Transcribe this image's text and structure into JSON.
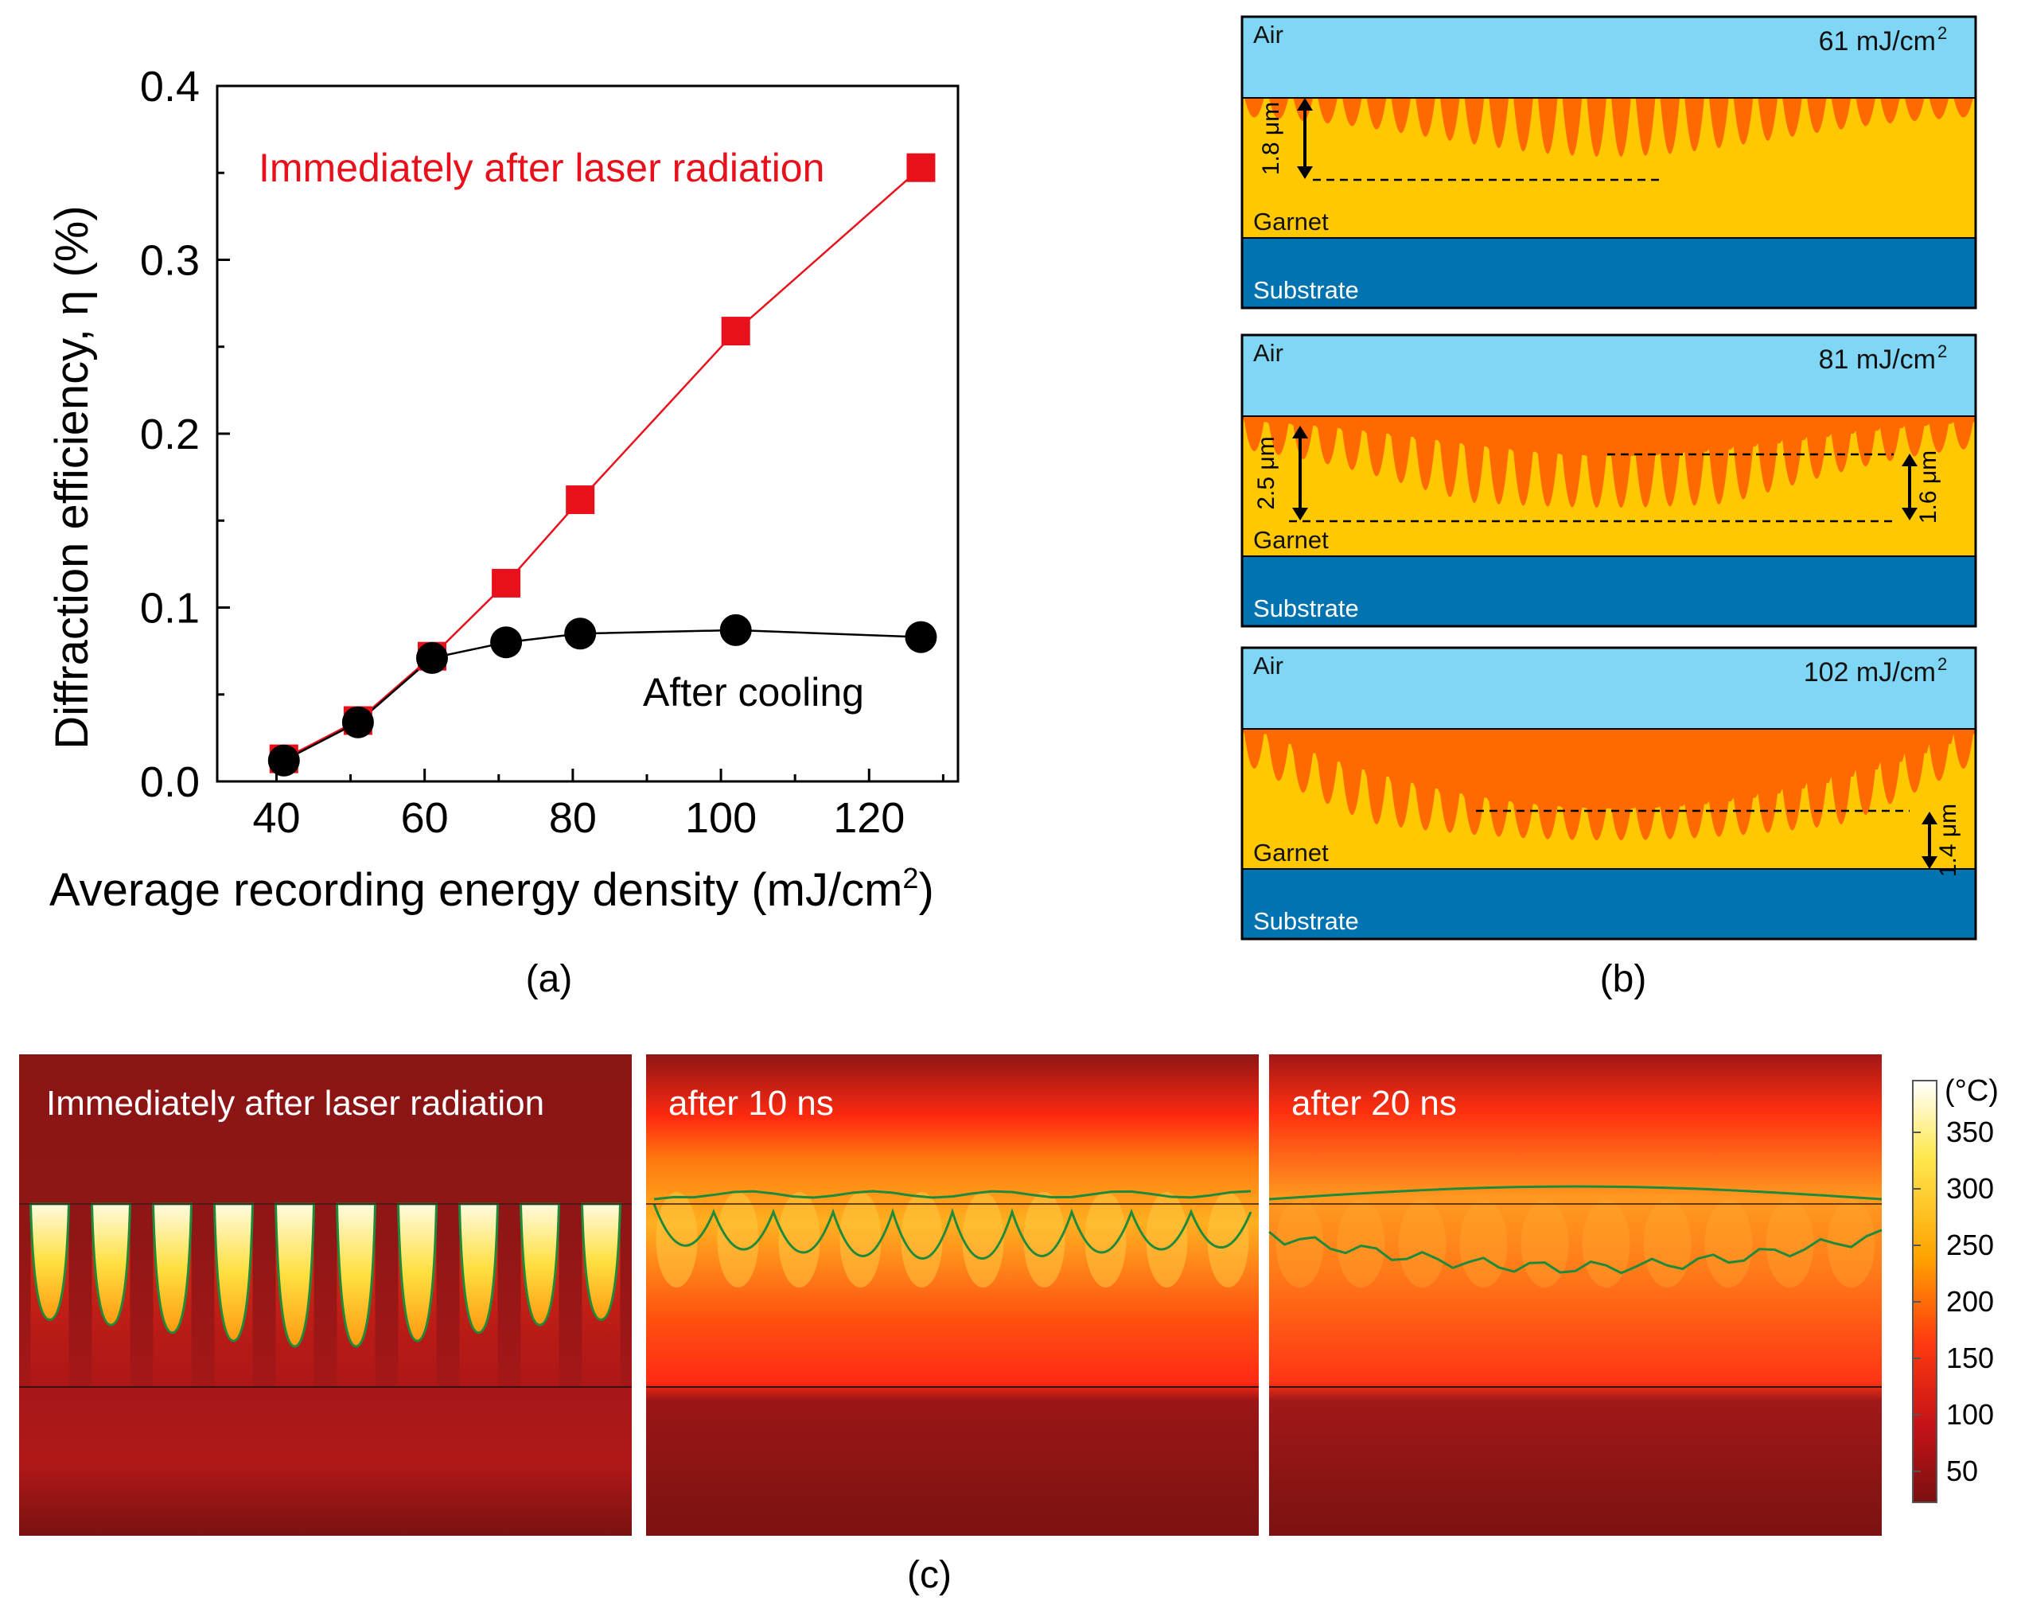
{
  "panel_a": {
    "caption": "(a)",
    "chart_data": {
      "type": "line",
      "title": "",
      "xlabel": "Average recording energy density (mJ/cm",
      "xlabel_sup": "2",
      "xlabel_end": ")",
      "ylabel": "Diffraction efficiency, η (%)",
      "xlim": [
        32,
        132
      ],
      "ylim": [
        0.0,
        0.4
      ],
      "xticks": [
        40,
        60,
        80,
        100,
        120
      ],
      "xtick_labels": [
        "40",
        "60",
        "80",
        "100",
        "120"
      ],
      "yticks": [
        0.0,
        0.1,
        0.2,
        0.3,
        0.4
      ],
      "ytick_labels": [
        "0.0",
        "0.1",
        "0.2",
        "0.3",
        "0.4"
      ],
      "series": [
        {
          "name": "Immediately after laser radiation",
          "color": "#e8101a",
          "marker": "square",
          "x": [
            41,
            51,
            61,
            71,
            81,
            102,
            127
          ],
          "values": [
            0.013,
            0.035,
            0.072,
            0.114,
            0.162,
            0.259,
            0.353
          ]
        },
        {
          "name": "After  cooling",
          "color": "#000000",
          "marker": "circle",
          "x": [
            41,
            51,
            61,
            71,
            81,
            102,
            127
          ],
          "values": [
            0.012,
            0.034,
            0.071,
            0.08,
            0.085,
            0.087,
            0.083
          ]
        }
      ]
    }
  },
  "panel_b": {
    "caption": "(b)",
    "layer_labels": {
      "air": "Air",
      "garnet": "Garnet",
      "substrate": "Substrate"
    },
    "colors": {
      "air": "#7fd6f5",
      "garnet": "#ffc800",
      "melt": "#ff6a00",
      "substrate": "#0073b0"
    },
    "diagrams": [
      {
        "energy": "61 mJ/cm",
        "sup": "2",
        "annotations": [
          "1.8 μm"
        ]
      },
      {
        "energy": "81 mJ/cm",
        "sup": "2",
        "annotations": [
          "2.5 μm",
          "1.6 μm"
        ]
      },
      {
        "energy": "102 mJ/cm",
        "sup": "2",
        "annotations": [
          "1.4 μm"
        ]
      }
    ]
  },
  "panel_c": {
    "caption": "(c)",
    "snapshots": [
      {
        "label": "Immediately after laser radiation"
      },
      {
        "label": "after 10 ns"
      },
      {
        "label": "after 20 ns"
      }
    ],
    "colorbar": {
      "unit": "(°C)",
      "ticks": [
        "350",
        "300",
        "250",
        "200",
        "150",
        "100",
        "50"
      ],
      "colors": [
        "#ffffff",
        "#ffe850",
        "#ffa300",
        "#ff3a10",
        "#c41218",
        "#7a1010"
      ]
    }
  }
}
